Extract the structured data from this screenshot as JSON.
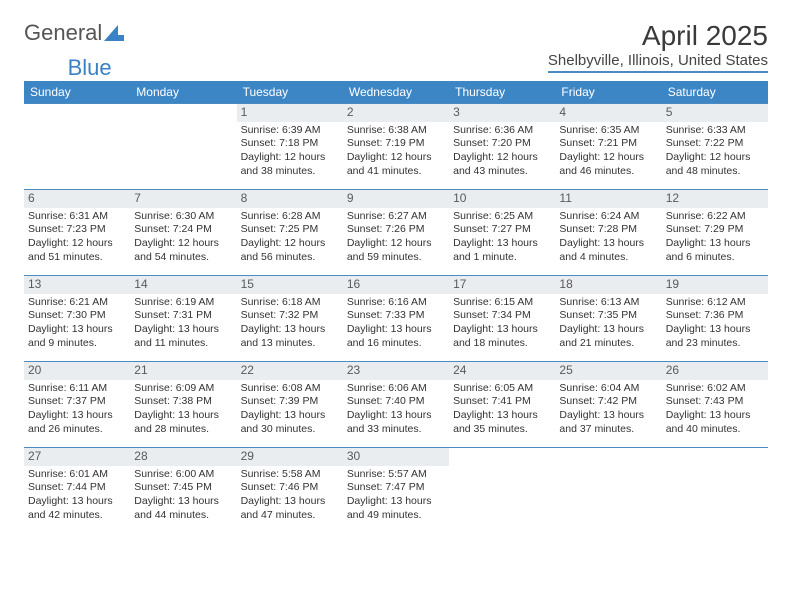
{
  "logo": {
    "text_general": "General",
    "text_blue": "Blue"
  },
  "title": "April 2025",
  "location": "Shelbyville, Illinois, United States",
  "colors": {
    "header_bg": "#3d86c6",
    "header_text": "#ffffff",
    "rule": "#4a8bc2",
    "daynum_bg": "#e9edf0",
    "body_text": "#333333",
    "logo_gray": "#555555",
    "logo_blue": "#3b82c4",
    "page_bg": "#ffffff"
  },
  "weekdays": [
    "Sunday",
    "Monday",
    "Tuesday",
    "Wednesday",
    "Thursday",
    "Friday",
    "Saturday"
  ],
  "weeks": [
    [
      null,
      null,
      {
        "d": "1",
        "sr": "Sunrise: 6:39 AM",
        "ss": "Sunset: 7:18 PM",
        "dl1": "Daylight: 12 hours",
        "dl2": "and 38 minutes."
      },
      {
        "d": "2",
        "sr": "Sunrise: 6:38 AM",
        "ss": "Sunset: 7:19 PM",
        "dl1": "Daylight: 12 hours",
        "dl2": "and 41 minutes."
      },
      {
        "d": "3",
        "sr": "Sunrise: 6:36 AM",
        "ss": "Sunset: 7:20 PM",
        "dl1": "Daylight: 12 hours",
        "dl2": "and 43 minutes."
      },
      {
        "d": "4",
        "sr": "Sunrise: 6:35 AM",
        "ss": "Sunset: 7:21 PM",
        "dl1": "Daylight: 12 hours",
        "dl2": "and 46 minutes."
      },
      {
        "d": "5",
        "sr": "Sunrise: 6:33 AM",
        "ss": "Sunset: 7:22 PM",
        "dl1": "Daylight: 12 hours",
        "dl2": "and 48 minutes."
      }
    ],
    [
      {
        "d": "6",
        "sr": "Sunrise: 6:31 AM",
        "ss": "Sunset: 7:23 PM",
        "dl1": "Daylight: 12 hours",
        "dl2": "and 51 minutes."
      },
      {
        "d": "7",
        "sr": "Sunrise: 6:30 AM",
        "ss": "Sunset: 7:24 PM",
        "dl1": "Daylight: 12 hours",
        "dl2": "and 54 minutes."
      },
      {
        "d": "8",
        "sr": "Sunrise: 6:28 AM",
        "ss": "Sunset: 7:25 PM",
        "dl1": "Daylight: 12 hours",
        "dl2": "and 56 minutes."
      },
      {
        "d": "9",
        "sr": "Sunrise: 6:27 AM",
        "ss": "Sunset: 7:26 PM",
        "dl1": "Daylight: 12 hours",
        "dl2": "and 59 minutes."
      },
      {
        "d": "10",
        "sr": "Sunrise: 6:25 AM",
        "ss": "Sunset: 7:27 PM",
        "dl1": "Daylight: 13 hours",
        "dl2": "and 1 minute."
      },
      {
        "d": "11",
        "sr": "Sunrise: 6:24 AM",
        "ss": "Sunset: 7:28 PM",
        "dl1": "Daylight: 13 hours",
        "dl2": "and 4 minutes."
      },
      {
        "d": "12",
        "sr": "Sunrise: 6:22 AM",
        "ss": "Sunset: 7:29 PM",
        "dl1": "Daylight: 13 hours",
        "dl2": "and 6 minutes."
      }
    ],
    [
      {
        "d": "13",
        "sr": "Sunrise: 6:21 AM",
        "ss": "Sunset: 7:30 PM",
        "dl1": "Daylight: 13 hours",
        "dl2": "and 9 minutes."
      },
      {
        "d": "14",
        "sr": "Sunrise: 6:19 AM",
        "ss": "Sunset: 7:31 PM",
        "dl1": "Daylight: 13 hours",
        "dl2": "and 11 minutes."
      },
      {
        "d": "15",
        "sr": "Sunrise: 6:18 AM",
        "ss": "Sunset: 7:32 PM",
        "dl1": "Daylight: 13 hours",
        "dl2": "and 13 minutes."
      },
      {
        "d": "16",
        "sr": "Sunrise: 6:16 AM",
        "ss": "Sunset: 7:33 PM",
        "dl1": "Daylight: 13 hours",
        "dl2": "and 16 minutes."
      },
      {
        "d": "17",
        "sr": "Sunrise: 6:15 AM",
        "ss": "Sunset: 7:34 PM",
        "dl1": "Daylight: 13 hours",
        "dl2": "and 18 minutes."
      },
      {
        "d": "18",
        "sr": "Sunrise: 6:13 AM",
        "ss": "Sunset: 7:35 PM",
        "dl1": "Daylight: 13 hours",
        "dl2": "and 21 minutes."
      },
      {
        "d": "19",
        "sr": "Sunrise: 6:12 AM",
        "ss": "Sunset: 7:36 PM",
        "dl1": "Daylight: 13 hours",
        "dl2": "and 23 minutes."
      }
    ],
    [
      {
        "d": "20",
        "sr": "Sunrise: 6:11 AM",
        "ss": "Sunset: 7:37 PM",
        "dl1": "Daylight: 13 hours",
        "dl2": "and 26 minutes."
      },
      {
        "d": "21",
        "sr": "Sunrise: 6:09 AM",
        "ss": "Sunset: 7:38 PM",
        "dl1": "Daylight: 13 hours",
        "dl2": "and 28 minutes."
      },
      {
        "d": "22",
        "sr": "Sunrise: 6:08 AM",
        "ss": "Sunset: 7:39 PM",
        "dl1": "Daylight: 13 hours",
        "dl2": "and 30 minutes."
      },
      {
        "d": "23",
        "sr": "Sunrise: 6:06 AM",
        "ss": "Sunset: 7:40 PM",
        "dl1": "Daylight: 13 hours",
        "dl2": "and 33 minutes."
      },
      {
        "d": "24",
        "sr": "Sunrise: 6:05 AM",
        "ss": "Sunset: 7:41 PM",
        "dl1": "Daylight: 13 hours",
        "dl2": "and 35 minutes."
      },
      {
        "d": "25",
        "sr": "Sunrise: 6:04 AM",
        "ss": "Sunset: 7:42 PM",
        "dl1": "Daylight: 13 hours",
        "dl2": "and 37 minutes."
      },
      {
        "d": "26",
        "sr": "Sunrise: 6:02 AM",
        "ss": "Sunset: 7:43 PM",
        "dl1": "Daylight: 13 hours",
        "dl2": "and 40 minutes."
      }
    ],
    [
      {
        "d": "27",
        "sr": "Sunrise: 6:01 AM",
        "ss": "Sunset: 7:44 PM",
        "dl1": "Daylight: 13 hours",
        "dl2": "and 42 minutes."
      },
      {
        "d": "28",
        "sr": "Sunrise: 6:00 AM",
        "ss": "Sunset: 7:45 PM",
        "dl1": "Daylight: 13 hours",
        "dl2": "and 44 minutes."
      },
      {
        "d": "29",
        "sr": "Sunrise: 5:58 AM",
        "ss": "Sunset: 7:46 PM",
        "dl1": "Daylight: 13 hours",
        "dl2": "and 47 minutes."
      },
      {
        "d": "30",
        "sr": "Sunrise: 5:57 AM",
        "ss": "Sunset: 7:47 PM",
        "dl1": "Daylight: 13 hours",
        "dl2": "and 49 minutes."
      },
      null,
      null,
      null
    ]
  ]
}
